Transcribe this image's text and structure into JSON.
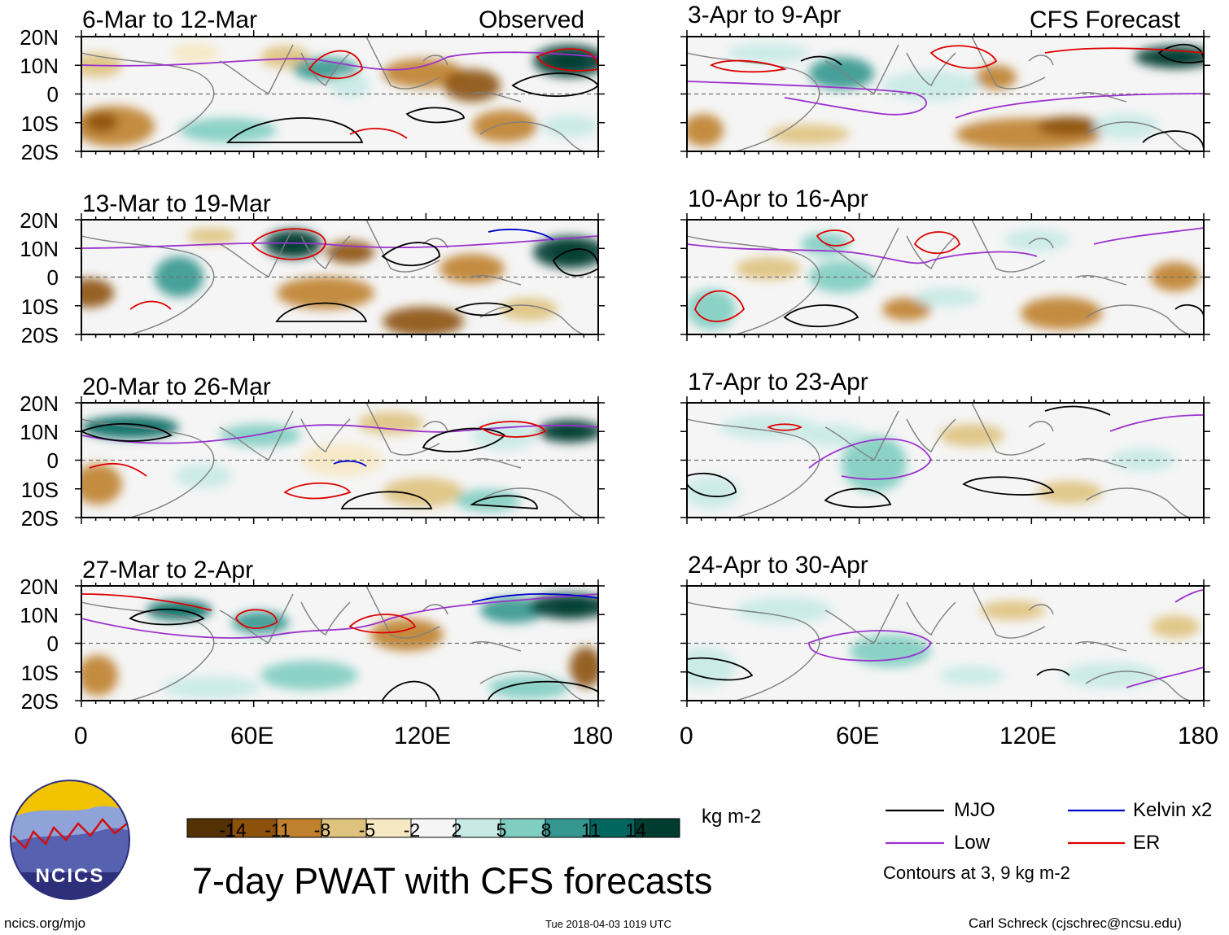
{
  "header": {
    "left_label": "Observed",
    "right_label": "CFS Forecast"
  },
  "panels": [
    {
      "id": "obs-1",
      "title": "6-Mar to 12-Mar"
    },
    {
      "id": "obs-2",
      "title": "13-Mar to 19-Mar"
    },
    {
      "id": "obs-3",
      "title": "20-Mar to 26-Mar"
    },
    {
      "id": "obs-4",
      "title": "27-Mar to 2-Apr"
    },
    {
      "id": "fc-1",
      "title": "3-Apr to 9-Apr"
    },
    {
      "id": "fc-2",
      "title": "10-Apr to 16-Apr"
    },
    {
      "id": "fc-3",
      "title": "17-Apr to 23-Apr"
    },
    {
      "id": "fc-4",
      "title": "24-Apr to 30-Apr"
    }
  ],
  "axes": {
    "lat_labels": [
      "20N",
      "10N",
      "0",
      "10S",
      "20S"
    ],
    "lon_labels": [
      "0",
      "60E",
      "120E",
      "180"
    ]
  },
  "colorbar": {
    "labels": [
      "-14",
      "-11",
      "-8",
      "-5",
      "-2",
      "2",
      "5",
      "8",
      "11",
      "14"
    ],
    "colors": [
      "#543005",
      "#8c510a",
      "#bf812d",
      "#dfc27d",
      "#f6e8c3",
      "#f5f5f5",
      "#c7eae5",
      "#80cdc1",
      "#35978f",
      "#01665e",
      "#003c30"
    ],
    "units": "kg m-2"
  },
  "legend": {
    "items": [
      {
        "label": "MJO",
        "color": "#000000"
      },
      {
        "label": "Kelvin x2",
        "color": "#0000cc"
      },
      {
        "label": "Low",
        "color": "#9a32cd"
      },
      {
        "label": "ER",
        "color": "#dd0000"
      }
    ],
    "note": "Contours at 3, 9 kg m-2"
  },
  "footer": {
    "title": "7-day PWAT with CFS forecasts",
    "url": "ncics.org/mjo",
    "timestamp": "Tue 2018-04-03 1019 UTC",
    "credit": "Carl Schreck (cjschrec@ncsu.edu)",
    "logo_text": "NCICS"
  }
}
